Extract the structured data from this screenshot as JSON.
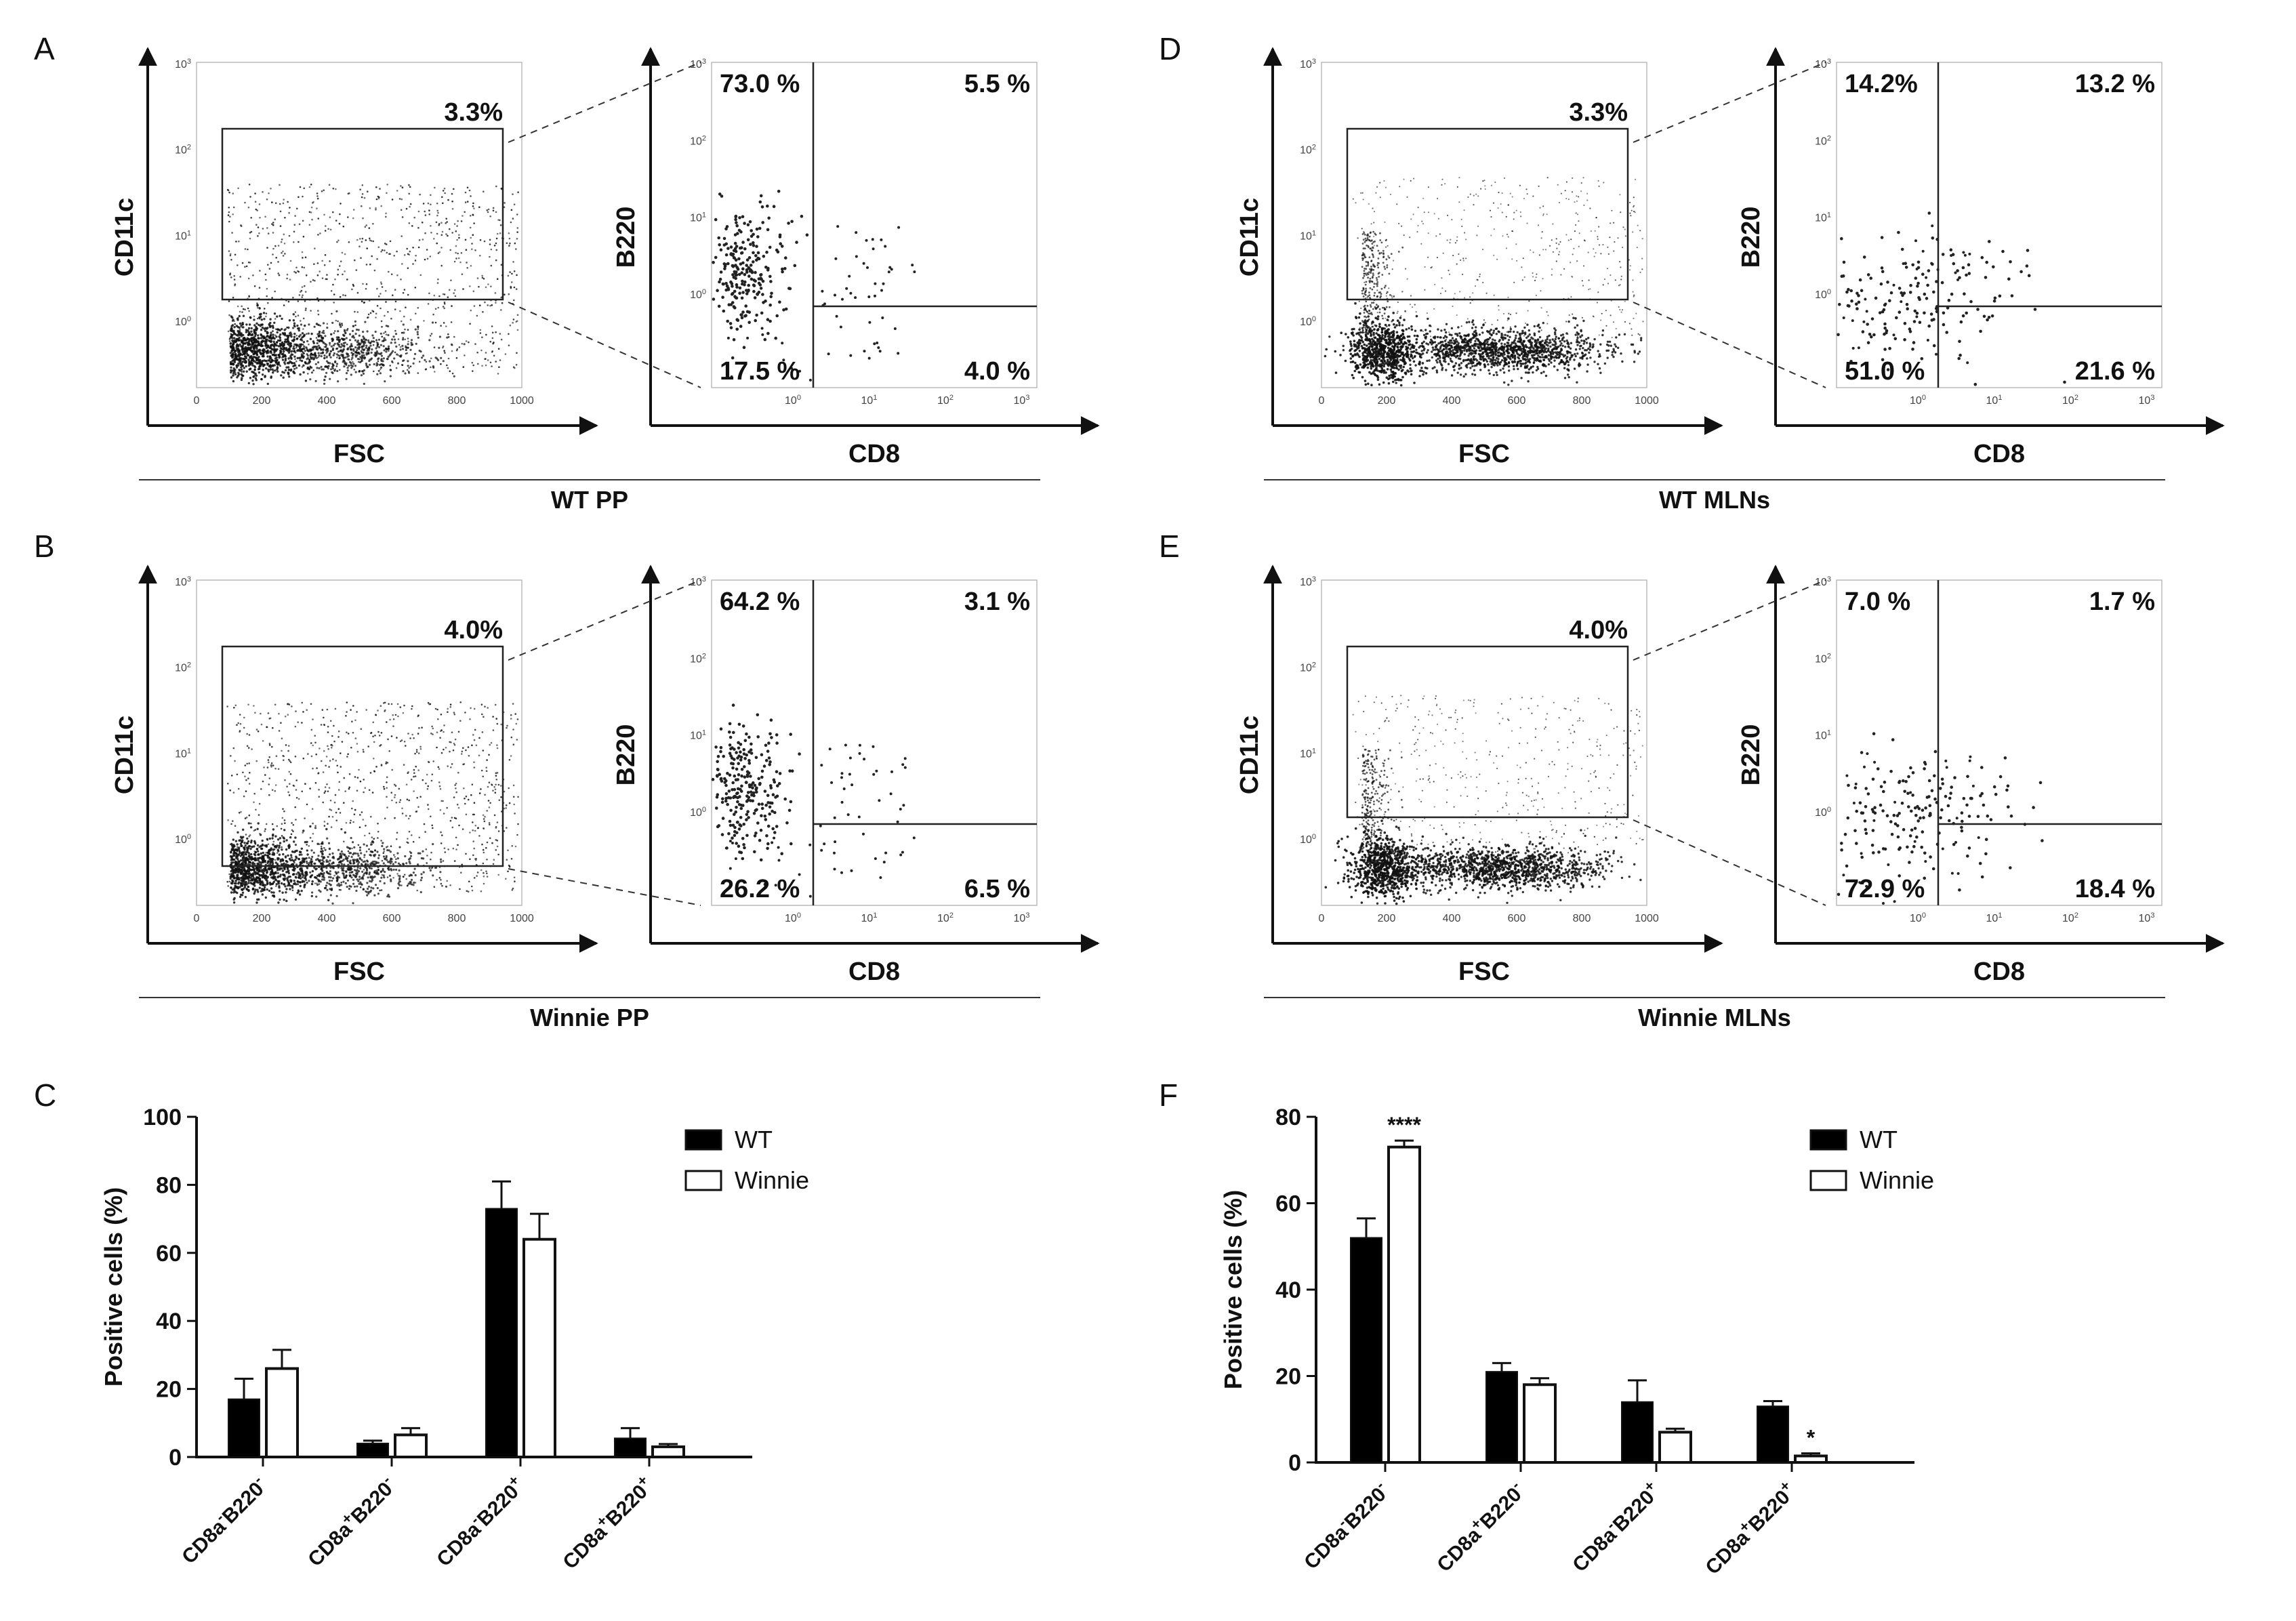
{
  "panels": [
    {
      "letter": "A",
      "group_title": "WT PP",
      "left": {
        "ylabel": "CD11c",
        "xlabel": "FSC",
        "gate_pct": "3.3%",
        "xticks": [
          "0",
          "200",
          "400",
          "600",
          "800",
          "1000"
        ],
        "yticks": [
          "10^3",
          "10^2",
          "10^1",
          "10^0"
        ]
      },
      "right": {
        "ylabel": "B220",
        "xlabel": "CD8",
        "q_ul": "73.0 %",
        "q_ur": "5.5 %",
        "q_ll": "17.5 %",
        "q_lr": "4.0 %",
        "xticks": [
          "10^0",
          "10^1",
          "10^2",
          "10^3"
        ],
        "yticks": [
          "10^3",
          "10^2",
          "10^1",
          "10^0"
        ]
      }
    },
    {
      "letter": "B",
      "group_title": "Winnie PP",
      "left": {
        "ylabel": "CD11c",
        "xlabel": "FSC",
        "gate_pct": "4.0%",
        "xticks": [
          "0",
          "200",
          "400",
          "600",
          "800",
          "1000"
        ],
        "yticks": [
          "10^3",
          "10^2",
          "10^1",
          "10^0"
        ]
      },
      "right": {
        "ylabel": "B220",
        "xlabel": "CD8",
        "q_ul": "64.2 %",
        "q_ur": "3.1 %",
        "q_ll": "26.2 %",
        "q_lr": "6.5 %",
        "xticks": [
          "10^0",
          "10^1",
          "10^2",
          "10^3"
        ],
        "yticks": [
          "10^3",
          "10^2",
          "10^1",
          "10^0"
        ]
      }
    },
    {
      "letter": "D",
      "group_title": "WT MLNs",
      "left": {
        "ylabel": "CD11c",
        "xlabel": "FSC",
        "gate_pct": "3.3%",
        "xticks": [
          "0",
          "200",
          "400",
          "600",
          "800",
          "1000"
        ],
        "yticks": [
          "10^3",
          "10^2",
          "10^1",
          "10^0"
        ]
      },
      "right": {
        "ylabel": "B220",
        "xlabel": "CD8",
        "q_ul": "14.2%",
        "q_ur": "13.2 %",
        "q_ll": "51.0 %",
        "q_lr": "21.6 %",
        "xticks": [
          "10^0",
          "10^1",
          "10^2",
          "10^3"
        ],
        "yticks": [
          "10^3",
          "10^2",
          "10^1",
          "10^0"
        ]
      }
    },
    {
      "letter": "E",
      "group_title": "Winnie MLNs",
      "left": {
        "ylabel": "CD11c",
        "xlabel": "FSC",
        "gate_pct": "4.0%",
        "xticks": [
          "0",
          "200",
          "400",
          "600",
          "800",
          "1000"
        ],
        "yticks": [
          "10^3",
          "10^2",
          "10^1",
          "10^0"
        ]
      },
      "right": {
        "ylabel": "B220",
        "xlabel": "CD8",
        "q_ul": "7.0 %",
        "q_ur": "1.7 %",
        "q_ll": "72.9 %",
        "q_lr": "18.4 %",
        "xticks": [
          "10^0",
          "10^1",
          "10^2",
          "10^3"
        ],
        "yticks": [
          "10^3",
          "10^2",
          "10^1",
          "10^0"
        ]
      }
    }
  ],
  "chart_data": [
    {
      "panel": "C",
      "type": "bar",
      "categories": [
        "CD8a-B220-",
        "CD8a+B220-",
        "CD8a-B220+",
        "CD8a+B220+"
      ],
      "category_labels": [
        {
          "base": "CD8a",
          "s1": "-",
          "mid": "B220",
          "s2": "-"
        },
        {
          "base": "CD8a",
          "s1": "+",
          "mid": "B220",
          "s2": "-"
        },
        {
          "base": "CD8a",
          "s1": "-",
          "mid": "B220",
          "s2": "+"
        },
        {
          "base": "CD8a",
          "s1": "+",
          "mid": "B220",
          "s2": "+"
        }
      ],
      "series": [
        {
          "name": "WT",
          "color": "#000000",
          "values": [
            17,
            4,
            73,
            5.5
          ],
          "errors": [
            6,
            0.8,
            8,
            3
          ]
        },
        {
          "name": "Winnie",
          "color": "#ffffff",
          "values": [
            26,
            6.5,
            64,
            3
          ],
          "errors": [
            5.5,
            2,
            7.5,
            0.8
          ]
        }
      ],
      "ylabel": "Positive cells (%)",
      "ylim": [
        0,
        100
      ],
      "yticks": [
        0,
        20,
        40,
        60,
        80,
        100
      ],
      "significance": [],
      "legend": "top-right"
    },
    {
      "panel": "F",
      "type": "bar",
      "categories": [
        "CD8a-B220-",
        "CD8a+B220-",
        "CD8a-B220+",
        "CD8a+B220+"
      ],
      "category_labels": [
        {
          "base": "CD8a",
          "s1": "-",
          "mid": "B220",
          "s2": "-"
        },
        {
          "base": "CD8a",
          "s1": "+",
          "mid": "B220",
          "s2": "-"
        },
        {
          "base": "CD8a",
          "s1": "-",
          "mid": "B220",
          "s2": "+"
        },
        {
          "base": "CD8a",
          "s1": "+",
          "mid": "B220",
          "s2": "+"
        }
      ],
      "series": [
        {
          "name": "WT",
          "color": "#000000",
          "values": [
            52,
            21,
            14,
            13
          ],
          "errors": [
            4.5,
            2,
            5,
            1.2
          ]
        },
        {
          "name": "Winnie",
          "color": "#ffffff",
          "values": [
            73,
            18,
            7,
            1.5
          ],
          "errors": [
            1.5,
            1.5,
            0.8,
            0.6
          ]
        }
      ],
      "ylabel": "Positive cells (%)",
      "ylim": [
        0,
        80
      ],
      "yticks": [
        0,
        20,
        40,
        60,
        80
      ],
      "significance": [
        {
          "category": 0,
          "series": 1,
          "label": "****"
        },
        {
          "category": 3,
          "series": 1,
          "label": "*"
        }
      ],
      "legend": "top-right"
    }
  ]
}
